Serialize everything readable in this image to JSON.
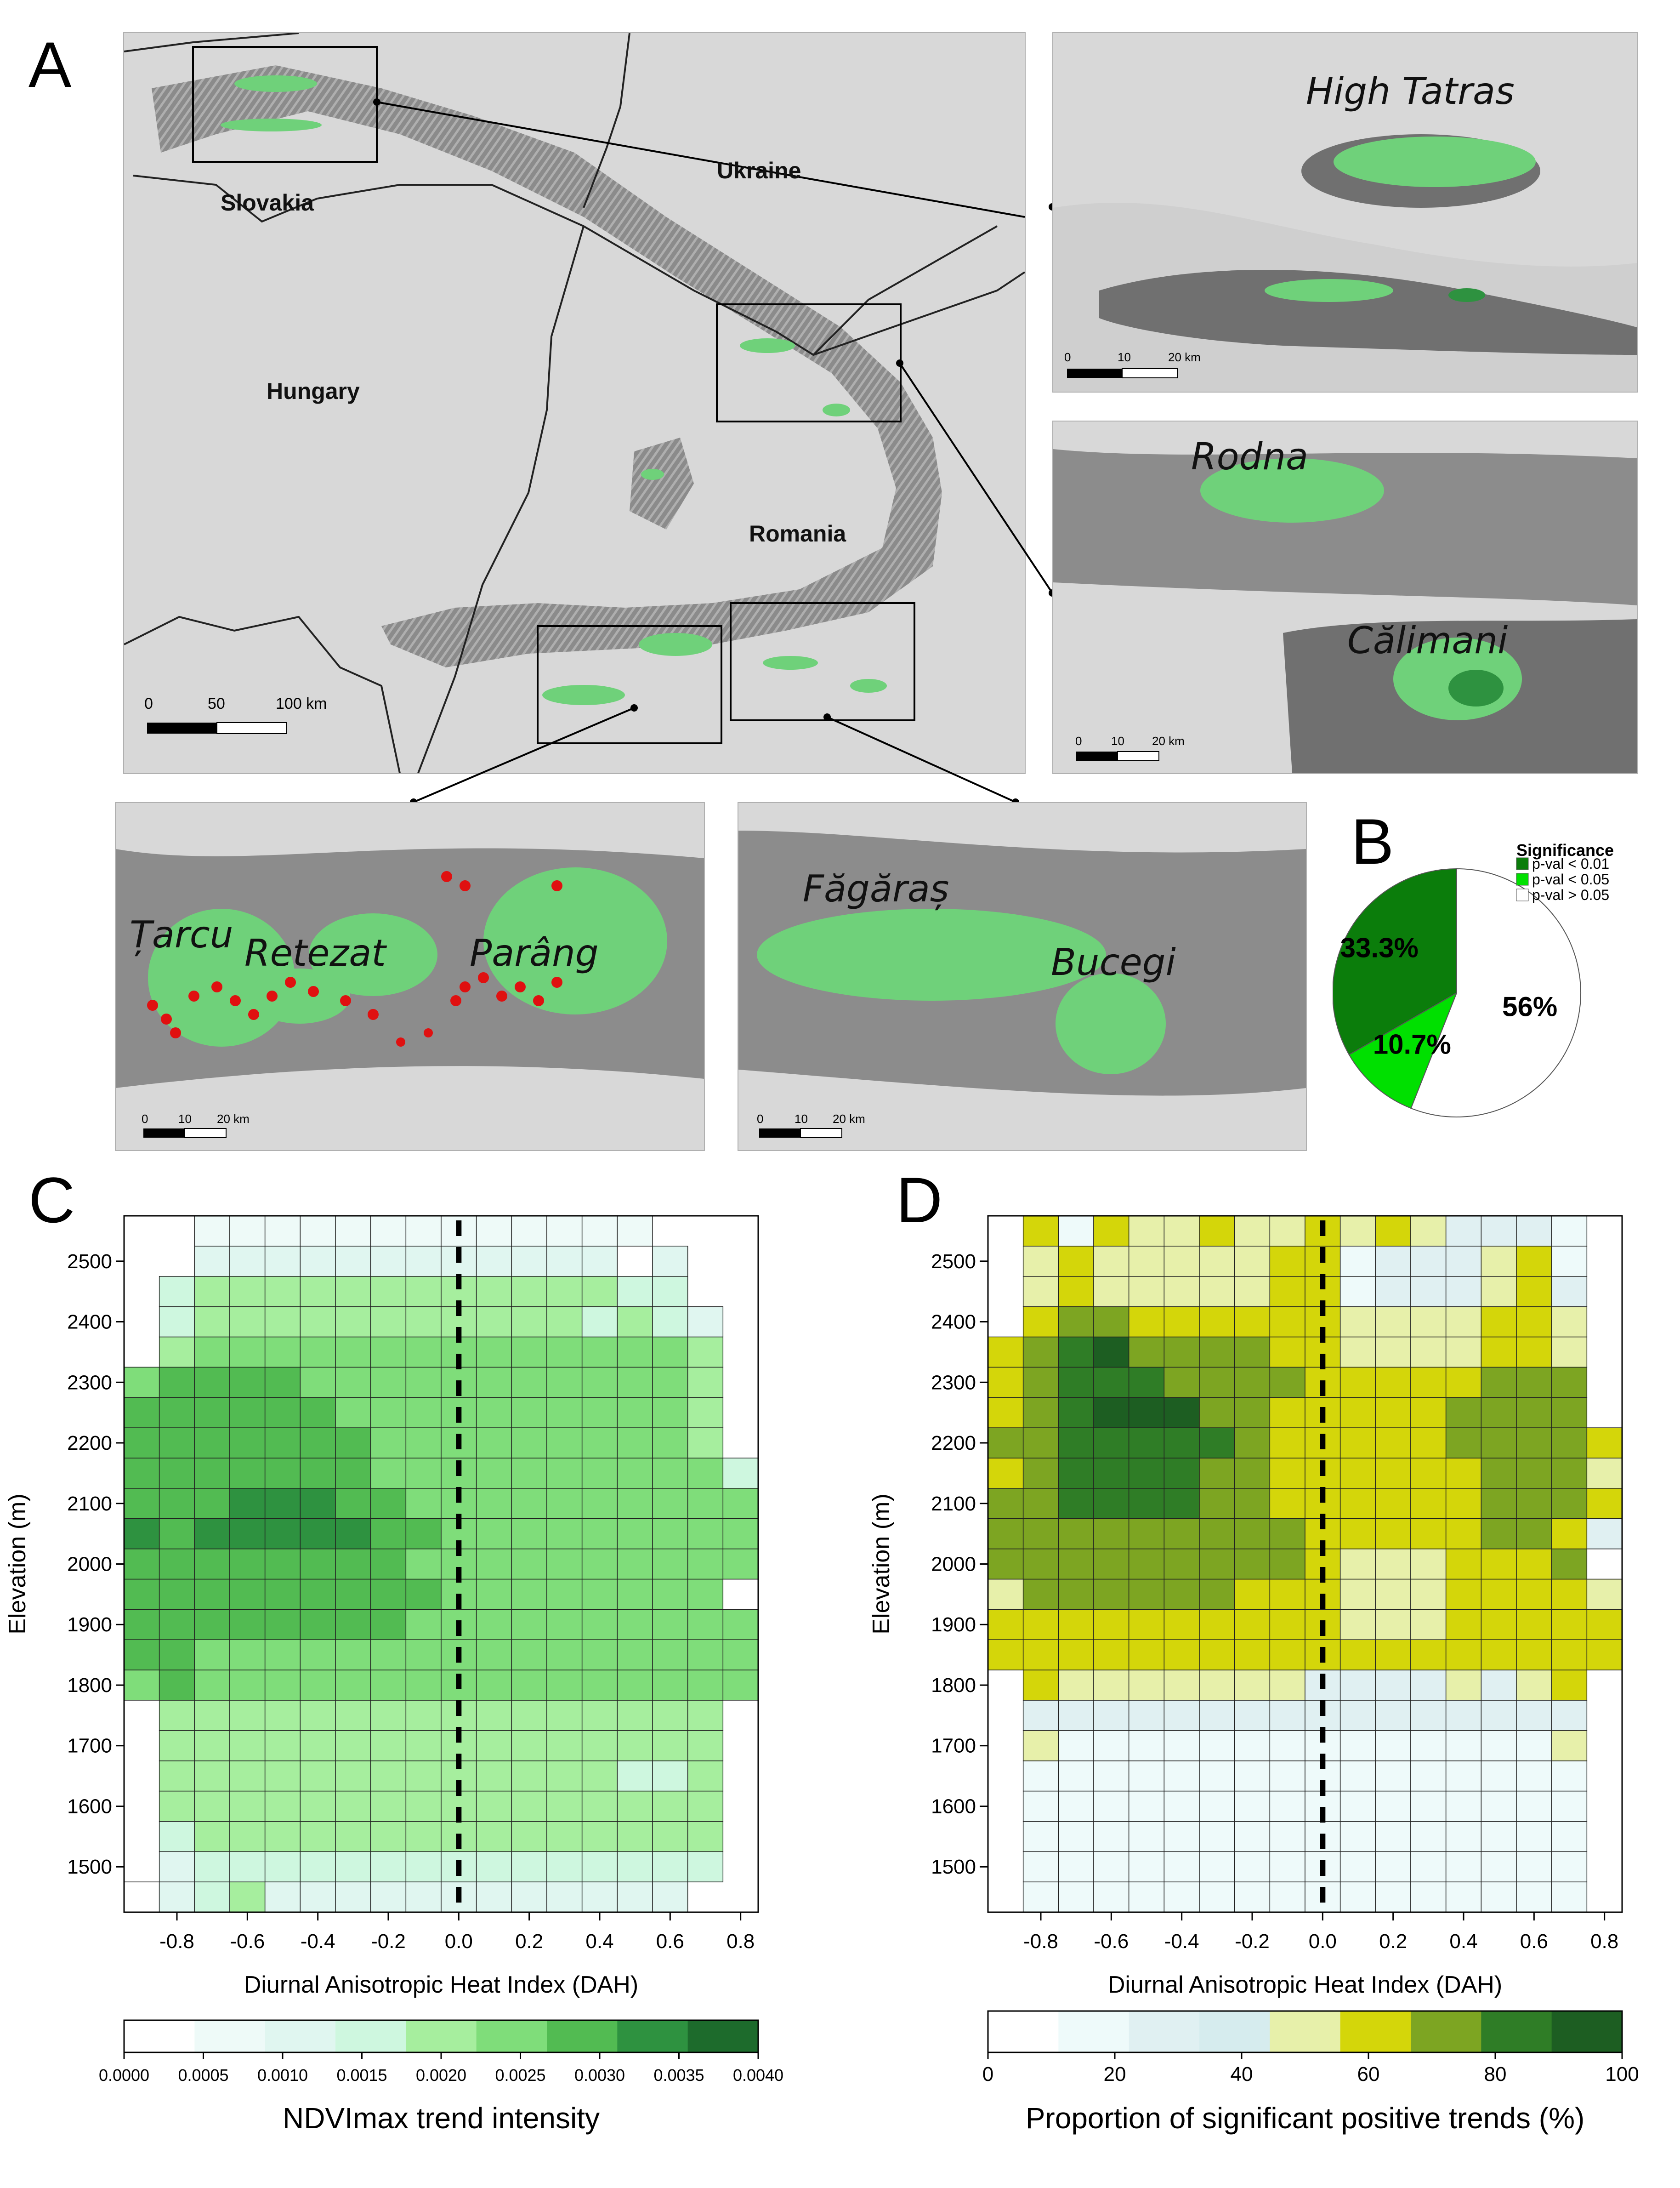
{
  "panels": {
    "a": "A",
    "b": "B",
    "c": "C",
    "d": "D"
  },
  "map_a": {
    "countries": [
      "Slovakia",
      "Ukraine",
      "Hungary",
      "Romania"
    ],
    "scale": {
      "ticks": [
        "0",
        "50",
        "100 km"
      ]
    }
  },
  "insets": {
    "tatras": {
      "ranges": [
        "High Tatras"
      ],
      "scale": [
        "0",
        "10",
        "20 km"
      ]
    },
    "rodna": {
      "ranges": [
        "Rodna",
        "Călimani"
      ],
      "scale": [
        "0",
        "10",
        "20 km"
      ]
    },
    "retezat": {
      "ranges": [
        "Țarcu",
        "Retezat",
        "Parâng"
      ],
      "scale": [
        "0",
        "10",
        "20 km"
      ]
    },
    "fagaras": {
      "ranges": [
        "Făgăraș",
        "Bucegi"
      ],
      "scale": [
        "0",
        "10",
        "20 km"
      ]
    }
  },
  "colors": {
    "hill": "#7a7a7a",
    "veg": "#6fd17a",
    "veg_dark": "#1f8a30",
    "red": "#e01010",
    "sig1": "#0b7d0b",
    "sig2": "#00e000",
    "sig3": "#ffffff"
  },
  "chart_data": [
    {
      "type": "pie",
      "legend_title": "Significance",
      "categories": [
        "p-val < 0.01",
        "p-val < 0.05",
        "p-val > 0.05"
      ],
      "values": [
        33.3,
        10.7,
        56
      ],
      "labels": [
        "33.3%",
        "10.7%",
        "56%"
      ],
      "colors": [
        "#0b7d0b",
        "#00e000",
        "#ffffff"
      ]
    },
    {
      "type": "heatmap",
      "xlabel": "Diurnal Anisotropic Heat Index (DAH)",
      "ylabel": "Elevation (m)",
      "x_ticks": [
        "-0.8",
        "-0.6",
        "-0.4",
        "-0.2",
        "0.0",
        "0.2",
        "0.4",
        "0.6",
        "0.8"
      ],
      "y_ticks": [
        "1500",
        "1600",
        "1700",
        "1800",
        "1900",
        "2000",
        "2100",
        "2200",
        "2300",
        "2400",
        "2500"
      ],
      "x_cols": [
        -0.9,
        -0.8,
        -0.7,
        -0.6,
        -0.5,
        -0.4,
        -0.3,
        -0.2,
        -0.1,
        0.0,
        0.1,
        0.2,
        0.3,
        0.4,
        0.5,
        0.6,
        0.7,
        0.8
      ],
      "y_rows": [
        1450,
        1500,
        1550,
        1600,
        1650,
        1700,
        1750,
        1800,
        1850,
        1900,
        1950,
        2000,
        2050,
        2100,
        2150,
        2200,
        2250,
        2300,
        2350,
        2400,
        2450,
        2500,
        2550
      ],
      "xlim": [
        -0.95,
        0.85
      ],
      "ylim": [
        1425,
        2575
      ],
      "colorbar": {
        "title": "NDVImax trend intensity",
        "ticks": [
          "0.0000",
          "0.0005",
          "0.0010",
          "0.0015",
          "0.0020",
          "0.0025",
          "0.0030",
          "0.0035",
          "0.0040"
        ],
        "range": [
          0,
          0.004
        ]
      },
      "palette": [
        "#ffffff",
        "#eefaf8",
        "#e0f6f0",
        "#cef7df",
        "#a6ee9e",
        "#7fdd7a",
        "#52bb52",
        "#2e9240",
        "#1d6b2c"
      ],
      "grid": [
        [
          0,
          2,
          3,
          4,
          2,
          2,
          2,
          2,
          2,
          2,
          2,
          2,
          2,
          2,
          2,
          2,
          null,
          null
        ],
        [
          null,
          2,
          3,
          3,
          3,
          3,
          3,
          3,
          3,
          3,
          3,
          3,
          3,
          3,
          3,
          3,
          3,
          null
        ],
        [
          null,
          3,
          4,
          4,
          4,
          4,
          4,
          4,
          4,
          4,
          4,
          4,
          4,
          4,
          4,
          4,
          4,
          null
        ],
        [
          null,
          4,
          4,
          4,
          4,
          4,
          4,
          4,
          4,
          4,
          4,
          4,
          4,
          4,
          4,
          4,
          4,
          null
        ],
        [
          null,
          4,
          4,
          4,
          4,
          4,
          4,
          4,
          4,
          4,
          4,
          4,
          4,
          4,
          3,
          3,
          4,
          null
        ],
        [
          null,
          4,
          4,
          4,
          4,
          4,
          4,
          4,
          4,
          4,
          4,
          4,
          4,
          4,
          4,
          4,
          4,
          null
        ],
        [
          null,
          4,
          4,
          4,
          4,
          4,
          4,
          4,
          4,
          4,
          4,
          4,
          4,
          4,
          4,
          4,
          4,
          null
        ],
        [
          5,
          6,
          5,
          5,
          5,
          5,
          5,
          5,
          5,
          5,
          5,
          5,
          5,
          5,
          5,
          5,
          5,
          5
        ],
        [
          6,
          6,
          5,
          5,
          5,
          5,
          5,
          5,
          5,
          5,
          5,
          5,
          5,
          5,
          5,
          5,
          5,
          5
        ],
        [
          6,
          6,
          6,
          6,
          6,
          6,
          6,
          6,
          5,
          5,
          5,
          5,
          5,
          5,
          5,
          5,
          5,
          5
        ],
        [
          6,
          6,
          6,
          6,
          6,
          6,
          6,
          6,
          6,
          5,
          5,
          5,
          5,
          5,
          5,
          5,
          5,
          0
        ],
        [
          6,
          6,
          6,
          6,
          6,
          6,
          6,
          6,
          5,
          5,
          5,
          5,
          5,
          5,
          5,
          5,
          5,
          5
        ],
        [
          7,
          6,
          7,
          7,
          7,
          7,
          7,
          6,
          6,
          5,
          5,
          5,
          5,
          5,
          5,
          5,
          5,
          5
        ],
        [
          6,
          6,
          6,
          7,
          7,
          7,
          6,
          6,
          5,
          5,
          5,
          5,
          5,
          5,
          5,
          5,
          5,
          5
        ],
        [
          6,
          6,
          6,
          6,
          6,
          6,
          6,
          5,
          5,
          5,
          5,
          5,
          5,
          5,
          5,
          5,
          5,
          3
        ],
        [
          6,
          6,
          6,
          6,
          6,
          6,
          6,
          5,
          5,
          5,
          5,
          5,
          5,
          5,
          5,
          5,
          4,
          null
        ],
        [
          6,
          6,
          6,
          6,
          6,
          6,
          5,
          5,
          5,
          5,
          5,
          5,
          5,
          5,
          5,
          5,
          4,
          null
        ],
        [
          5,
          6,
          6,
          6,
          6,
          5,
          5,
          5,
          5,
          5,
          5,
          5,
          5,
          5,
          5,
          5,
          4,
          null
        ],
        [
          null,
          4,
          5,
          5,
          5,
          5,
          5,
          5,
          5,
          5,
          5,
          5,
          5,
          5,
          5,
          5,
          4,
          null
        ],
        [
          null,
          3,
          4,
          4,
          4,
          4,
          4,
          4,
          4,
          4,
          4,
          4,
          4,
          3,
          4,
          3,
          2,
          null
        ],
        [
          null,
          3,
          4,
          4,
          4,
          4,
          4,
          4,
          4,
          4,
          4,
          4,
          4,
          4,
          3,
          3,
          null,
          null
        ],
        [
          null,
          null,
          2,
          2,
          2,
          2,
          2,
          2,
          2,
          2,
          2,
          2,
          2,
          2,
          0,
          2,
          null,
          null
        ],
        [
          null,
          null,
          1,
          1,
          1,
          1,
          1,
          1,
          1,
          1,
          1,
          1,
          1,
          1,
          1,
          null,
          null,
          null
        ]
      ]
    },
    {
      "type": "heatmap",
      "xlabel": "Diurnal Anisotropic Heat Index (DAH)",
      "ylabel": "Elevation (m)",
      "x_ticks": [
        "-0.8",
        "-0.6",
        "-0.4",
        "-0.2",
        "0.0",
        "0.2",
        "0.4",
        "0.6",
        "0.8"
      ],
      "y_ticks": [
        "1500",
        "1600",
        "1700",
        "1800",
        "1900",
        "2000",
        "2100",
        "2200",
        "2300",
        "2400",
        "2500"
      ],
      "x_cols": [
        -0.9,
        -0.8,
        -0.7,
        -0.6,
        -0.5,
        -0.4,
        -0.3,
        -0.2,
        -0.1,
        0.0,
        0.1,
        0.2,
        0.3,
        0.4,
        0.5,
        0.6,
        0.7,
        0.8
      ],
      "y_rows": [
        1450,
        1500,
        1550,
        1600,
        1650,
        1700,
        1750,
        1800,
        1850,
        1900,
        1950,
        2000,
        2050,
        2100,
        2150,
        2200,
        2250,
        2300,
        2350,
        2400,
        2450,
        2500,
        2550
      ],
      "xlim": [
        -0.95,
        0.85
      ],
      "ylim": [
        1425,
        2575
      ],
      "colorbar": {
        "title": "Proportion of significant positive trends (%)",
        "ticks": [
          "0",
          "20",
          "40",
          "60",
          "80",
          "100"
        ],
        "range": [
          0,
          100
        ]
      },
      "palette": [
        "#ffffff",
        "#eefafa",
        "#e0f0f2",
        "#d6ecee",
        "#e7f0aa",
        "#d4d60a",
        "#7da522",
        "#2f7d26",
        "#1d5e22"
      ],
      "grid": [
        [
          null,
          1,
          1,
          1,
          1,
          1,
          1,
          1,
          1,
          1,
          1,
          1,
          1,
          1,
          1,
          1,
          1,
          null
        ],
        [
          null,
          1,
          1,
          1,
          1,
          1,
          1,
          1,
          1,
          1,
          1,
          1,
          1,
          1,
          1,
          1,
          1,
          null
        ],
        [
          null,
          1,
          1,
          1,
          1,
          1,
          1,
          1,
          1,
          1,
          1,
          1,
          1,
          1,
          1,
          1,
          1,
          null
        ],
        [
          null,
          1,
          1,
          1,
          1,
          1,
          1,
          1,
          1,
          1,
          1,
          1,
          1,
          1,
          1,
          1,
          1,
          null
        ],
        [
          null,
          1,
          1,
          1,
          1,
          1,
          1,
          1,
          1,
          1,
          1,
          1,
          1,
          1,
          1,
          1,
          1,
          null
        ],
        [
          null,
          4,
          1,
          1,
          1,
          1,
          1,
          1,
          1,
          1,
          1,
          1,
          1,
          1,
          1,
          1,
          4,
          null
        ],
        [
          null,
          2,
          2,
          2,
          2,
          2,
          2,
          2,
          2,
          2,
          2,
          2,
          2,
          2,
          2,
          2,
          2,
          null
        ],
        [
          null,
          5,
          4,
          4,
          4,
          4,
          4,
          4,
          4,
          2,
          2,
          2,
          2,
          4,
          2,
          4,
          5,
          null
        ],
        [
          5,
          5,
          5,
          5,
          5,
          5,
          5,
          5,
          5,
          5,
          5,
          5,
          5,
          5,
          5,
          5,
          5,
          5
        ],
        [
          5,
          5,
          5,
          5,
          5,
          5,
          5,
          5,
          5,
          5,
          4,
          4,
          4,
          5,
          5,
          5,
          5,
          5
        ],
        [
          4,
          6,
          6,
          6,
          6,
          6,
          6,
          5,
          5,
          5,
          4,
          4,
          4,
          5,
          5,
          5,
          5,
          4
        ],
        [
          6,
          6,
          6,
          6,
          6,
          6,
          6,
          6,
          6,
          5,
          4,
          4,
          4,
          5,
          5,
          5,
          6,
          0
        ],
        [
          6,
          6,
          6,
          6,
          6,
          6,
          6,
          6,
          6,
          5,
          5,
          5,
          5,
          5,
          6,
          6,
          5,
          2
        ],
        [
          6,
          6,
          7,
          7,
          7,
          7,
          6,
          6,
          5,
          5,
          5,
          5,
          5,
          5,
          6,
          6,
          6,
          5
        ],
        [
          5,
          6,
          7,
          7,
          7,
          7,
          6,
          6,
          5,
          5,
          5,
          5,
          5,
          5,
          6,
          6,
          6,
          4
        ],
        [
          6,
          6,
          7,
          7,
          7,
          7,
          7,
          6,
          5,
          5,
          5,
          5,
          5,
          6,
          6,
          6,
          6,
          5
        ],
        [
          5,
          6,
          7,
          8,
          8,
          8,
          6,
          6,
          5,
          5,
          5,
          5,
          5,
          6,
          6,
          6,
          6,
          null
        ],
        [
          5,
          6,
          7,
          7,
          7,
          6,
          6,
          6,
          6,
          5,
          5,
          5,
          5,
          5,
          6,
          6,
          6,
          null
        ],
        [
          5,
          6,
          7,
          8,
          6,
          6,
          6,
          6,
          5,
          5,
          4,
          4,
          4,
          4,
          5,
          5,
          4,
          null
        ],
        [
          null,
          5,
          6,
          6,
          5,
          5,
          5,
          5,
          5,
          5,
          4,
          4,
          4,
          4,
          5,
          5,
          4,
          null
        ],
        [
          null,
          4,
          5,
          4,
          4,
          4,
          4,
          4,
          5,
          5,
          1,
          2,
          2,
          2,
          4,
          5,
          2,
          null
        ],
        [
          null,
          4,
          5,
          4,
          4,
          4,
          4,
          4,
          5,
          5,
          1,
          2,
          2,
          2,
          4,
          5,
          1,
          null
        ],
        [
          null,
          5,
          1,
          5,
          4,
          4,
          5,
          4,
          4,
          5,
          4,
          5,
          4,
          2,
          2,
          2,
          1,
          null
        ]
      ]
    }
  ]
}
